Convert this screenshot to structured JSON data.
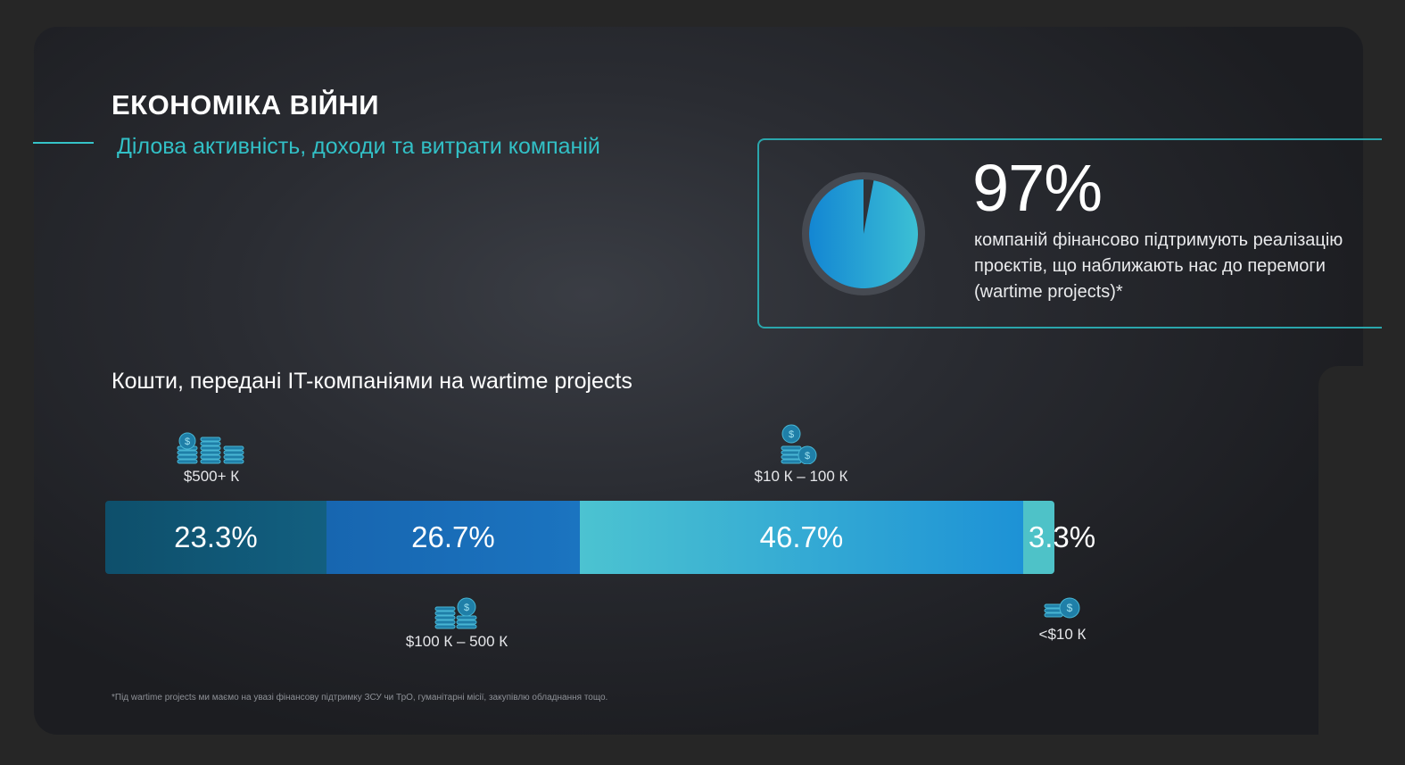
{
  "header": {
    "title": "ЕКОНОМІКА ВІЙНИ",
    "subtitle": "Ділова активність, доходи та витрати компаній"
  },
  "highlight": {
    "percent_text": "97%",
    "value": 97,
    "description": "компаній фінансово підтримують реалізацію проєктів, що наближають нас до перемоги (wartime projects)*"
  },
  "chart_data": [
    {
      "type": "pie",
      "values": [
        97,
        3
      ],
      "colors": [
        "#1d9ad8",
        "#3a3f47"
      ]
    },
    {
      "type": "bar",
      "orientation": "stacked-horizontal",
      "title": "Кошти, передані IT-компаніями на wartime projects",
      "categories": [
        "$500+ К",
        "$100 К – 500 К",
        "$10 К – 100 К",
        "<$10 К"
      ],
      "values": [
        23.3,
        26.7,
        46.7,
        3.3
      ],
      "labels": [
        "23.3%",
        "26.7%",
        "46.7%",
        "3.3%"
      ],
      "colors": [
        "#0f5a79",
        "#1a6fba",
        "#3ab3cf",
        "#47c1c7"
      ],
      "category_icons": [
        "coin-stacks-large-icon",
        "coin-stack-medium-icon",
        "coin-stack-small-icon",
        "coin-small-icon"
      ]
    }
  ],
  "footnote": "*Під wartime projects ми маємо на увазі фінансову підтримку ЗСУ чи ТрО, гуманітарні місії, закупівлю обладнання тощо."
}
